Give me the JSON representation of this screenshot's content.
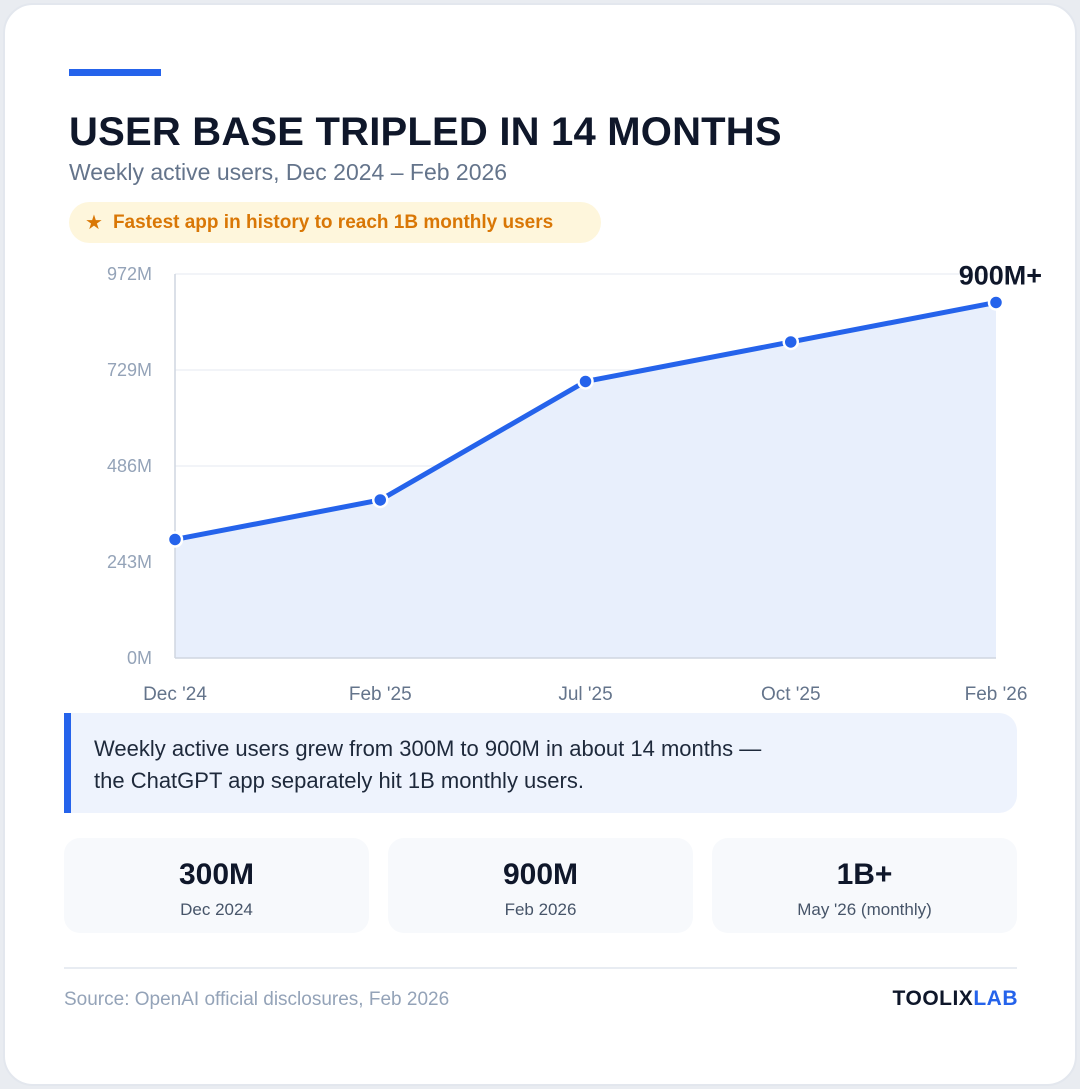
{
  "header": {
    "title": "USER BASE TRIPLED IN 14 MONTHS",
    "subtitle": "Weekly active users, Dec 2024 – Feb 2026",
    "badge_icon": "star-icon",
    "badge_text": "Fastest app in history to reach 1B monthly users"
  },
  "chart_data": {
    "type": "area",
    "title": "USER BASE TRIPLED IN 14 MONTHS",
    "subtitle": "Weekly active users, Dec 2024 – Feb 2026",
    "categories": [
      "Dec '24",
      "Feb '25",
      "Jul '25",
      "Oct '25",
      "Feb '26"
    ],
    "series": [
      {
        "values": [
          300,
          400,
          700,
          800,
          900
        ]
      }
    ],
    "unit": "M",
    "ylim": [
      0,
      972
    ],
    "yticks": [
      0,
      243,
      486,
      729,
      972
    ],
    "ytick_labels": [
      "0M",
      "243M",
      "486M",
      "729M",
      "972M"
    ],
    "end_label": "900M+",
    "grid": true,
    "colors": {
      "line": "#2563eb",
      "fill": "#e8effc",
      "grid": "#eef1f6"
    }
  },
  "callout": {
    "text": "Weekly active users grew from 300M to 900M in about 14 months — the ChatGPT app separately hit 1B monthly users."
  },
  "stats": [
    {
      "value": "300M",
      "label": "Dec 2024"
    },
    {
      "value": "900M",
      "label": "Feb 2026"
    },
    {
      "value": "1B+",
      "label": "May '26 (monthly)"
    }
  ],
  "footer": {
    "source": "Source: OpenAI official disclosures, Feb 2026",
    "brand_part1": "TOOLIX",
    "brand_part2": "LAB"
  },
  "colors": {
    "accent": "#2563eb",
    "badge_text": "#d97706",
    "badge_bg": "#fef6dc"
  }
}
